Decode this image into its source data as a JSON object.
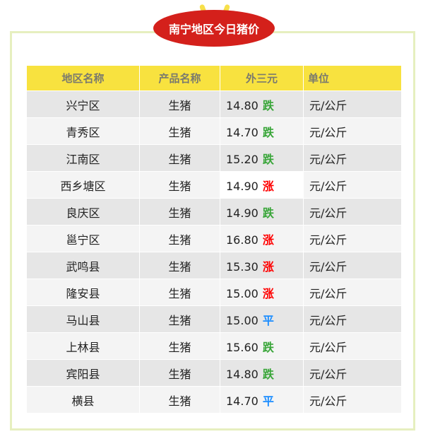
{
  "title": "南宁地区今日猪价",
  "colors": {
    "down": "#3aa63a",
    "up": "#ff0000",
    "flat": "#1a8cff",
    "header": "#f8e23f",
    "badge": "#d4201b"
  },
  "headers": [
    "地区名称",
    "产品名称",
    "外三元",
    "单位"
  ],
  "rows": [
    {
      "region": "兴宁区",
      "product": "生猪",
      "price": "14.80",
      "trend": "跌",
      "type": "down",
      "unit": "元/公斤"
    },
    {
      "region": "青秀区",
      "product": "生猪",
      "price": "14.70",
      "trend": "跌",
      "type": "down",
      "unit": "元/公斤"
    },
    {
      "region": "江南区",
      "product": "生猪",
      "price": "15.20",
      "trend": "跌",
      "type": "down",
      "unit": "元/公斤"
    },
    {
      "region": "西乡塘区",
      "product": "生猪",
      "price": "14.90",
      "trend": "涨",
      "type": "up",
      "unit": "元/公斤"
    },
    {
      "region": "良庆区",
      "product": "生猪",
      "price": "14.90",
      "trend": "跌",
      "type": "down",
      "unit": "元/公斤"
    },
    {
      "region": "邕宁区",
      "product": "生猪",
      "price": "16.80",
      "trend": "涨",
      "type": "up",
      "unit": "元/公斤"
    },
    {
      "region": "武鸣县",
      "product": "生猪",
      "price": "15.30",
      "trend": "涨",
      "type": "up",
      "unit": "元/公斤"
    },
    {
      "region": "隆安县",
      "product": "生猪",
      "price": "15.00",
      "trend": "涨",
      "type": "up",
      "unit": "元/公斤"
    },
    {
      "region": "马山县",
      "product": "生猪",
      "price": "15.00",
      "trend": "平",
      "type": "flat",
      "unit": "元/公斤"
    },
    {
      "region": "上林县",
      "product": "生猪",
      "price": "15.60",
      "trend": "跌",
      "type": "down",
      "unit": "元/公斤"
    },
    {
      "region": "宾阳县",
      "product": "生猪",
      "price": "14.80",
      "trend": "跌",
      "type": "down",
      "unit": "元/公斤"
    },
    {
      "region": "横县",
      "product": "生猪",
      "price": "14.70",
      "trend": "平",
      "type": "flat",
      "unit": "元/公斤"
    }
  ]
}
